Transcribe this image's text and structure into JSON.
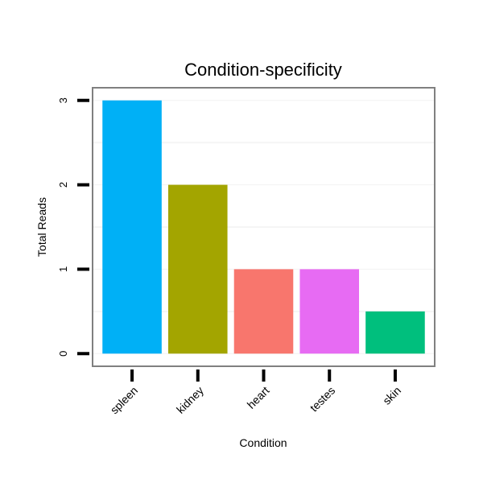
{
  "chart_data": {
    "type": "bar",
    "title": "Condition-specificity",
    "xlabel": "Condition",
    "ylabel": "Total Reads",
    "categories": [
      "spleen",
      "kidney",
      "heart",
      "testes",
      "skin"
    ],
    "values": [
      3,
      2,
      1,
      1,
      0.5
    ],
    "colors": [
      "#00B0F6",
      "#A3A500",
      "#F8766D",
      "#E76BF3",
      "#00BF7D"
    ],
    "ylim": [
      -0.15,
      3.15
    ],
    "yticks": [
      0,
      1,
      2,
      3
    ],
    "ytick_labels": [
      "0",
      "1",
      "2",
      "3"
    ],
    "grid": true,
    "legend": "none"
  }
}
